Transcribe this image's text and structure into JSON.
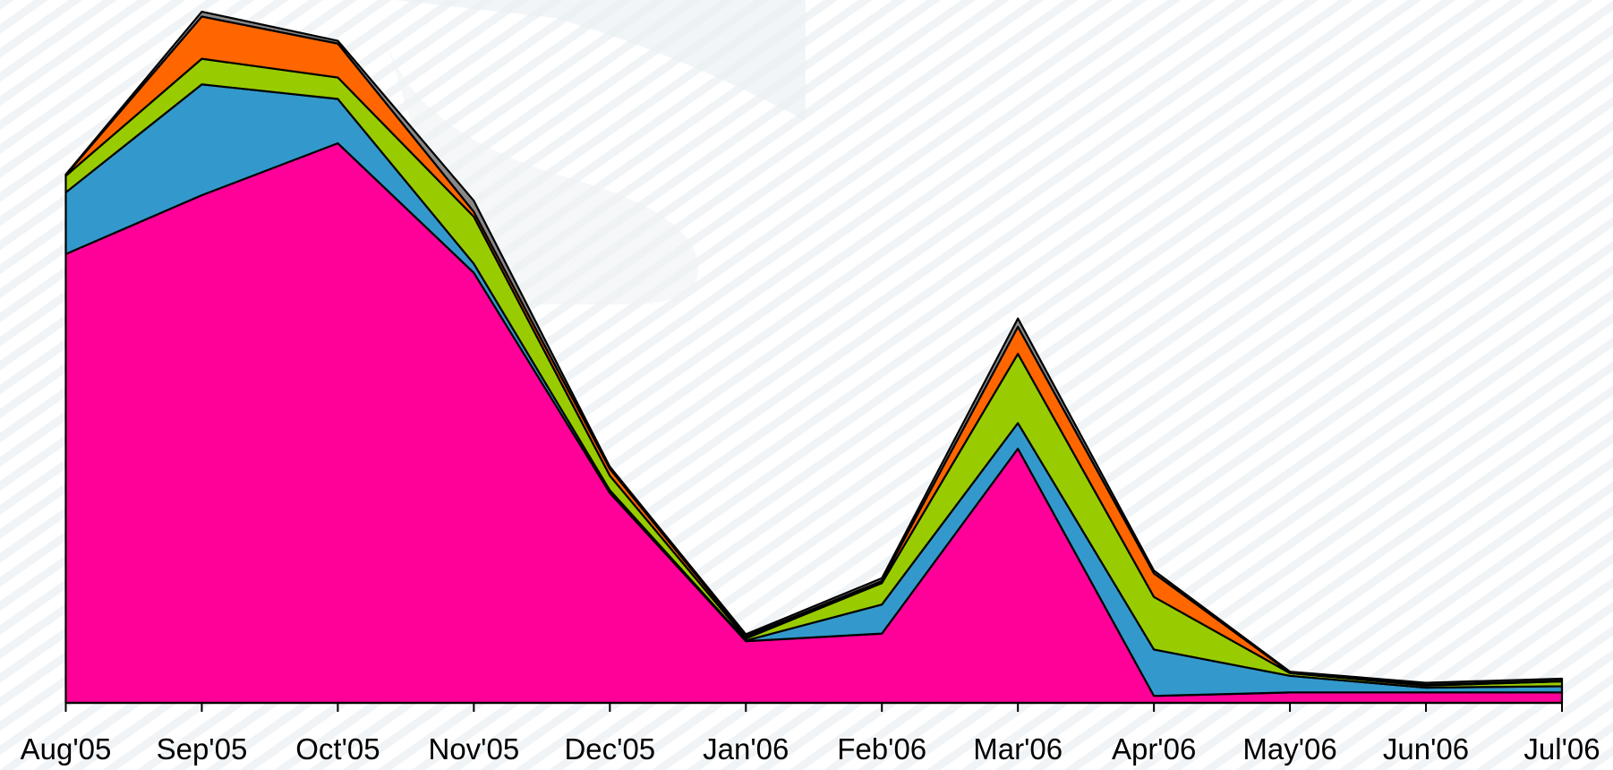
{
  "chart_data": {
    "type": "stacked_area",
    "categories": [
      "Aug'05",
      "Sep'05",
      "Oct'05",
      "Nov'05",
      "Dec'05",
      "Jan'06",
      "Feb'06",
      "Mar'06",
      "Apr'06",
      "May'06",
      "Jun'06",
      "Jul'06"
    ],
    "series": [
      {
        "color": "#ff0099",
        "values": [
          64.8,
          73.3,
          80.8,
          62.1,
          30.3,
          8.9,
          10.0,
          36.7,
          1.0,
          1.5,
          1.5,
          1.5
        ]
      },
      {
        "color": "#3399cc",
        "values": [
          8.9,
          16.0,
          6.4,
          1.3,
          0.4,
          0.1,
          4.2,
          3.7,
          6.7,
          2.4,
          0.7,
          0.9
        ]
      },
      {
        "color": "#99cc00",
        "values": [
          2.4,
          3.7,
          3.1,
          6.8,
          2.1,
          0.3,
          3.1,
          10.0,
          7.6,
          0.4,
          0.3,
          0.7
        ]
      },
      {
        "color": "#ff6600",
        "values": [
          0.1,
          6.1,
          4.9,
          0.7,
          1.0,
          0.3,
          0.3,
          3.9,
          3.4,
          0.1,
          0.1,
          0.1
        ]
      },
      {
        "color": "#888888",
        "values": [
          0.1,
          0.7,
          0.4,
          1.6,
          0.3,
          0.3,
          0.4,
          1.2,
          0.4,
          0.1,
          0.3,
          0.3
        ]
      }
    ],
    "ylim": [
      0,
      100
    ]
  }
}
